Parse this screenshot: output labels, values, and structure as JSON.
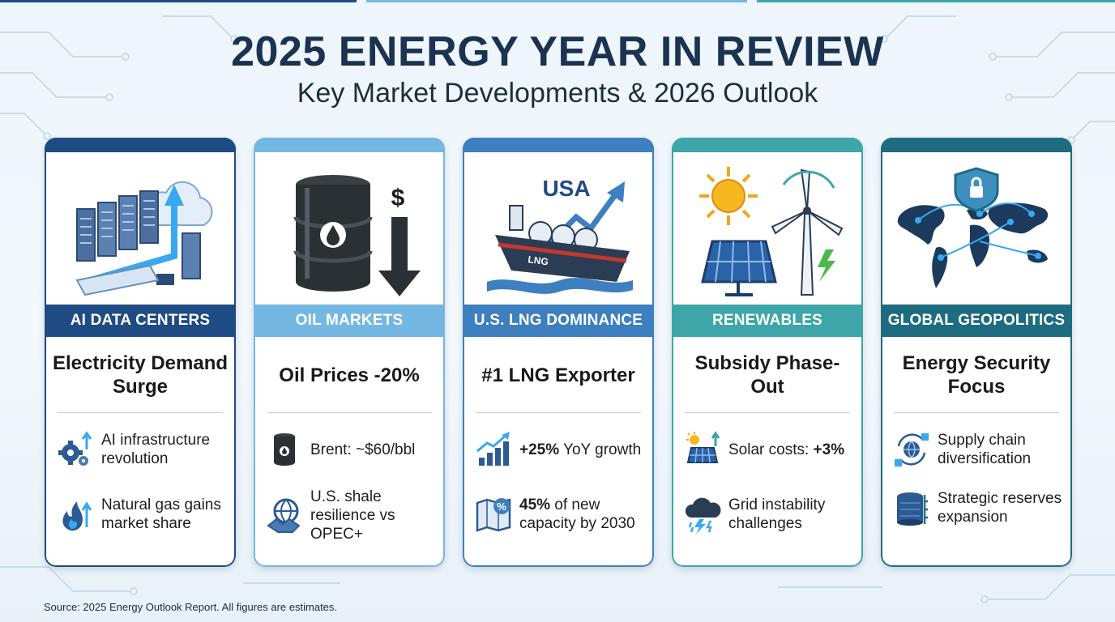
{
  "header": {
    "title": "2025 ENERGY YEAR IN REVIEW",
    "subtitle": "Key Market Developments & 2026 Outlook"
  },
  "colors": {
    "navy": "#1f4b84",
    "light_blue": "#74b7e2",
    "mid_blue": "#3d7fbf",
    "teal": "#3ea6a8",
    "dark_teal": "#1e6c80"
  },
  "cards": [
    {
      "banner": "AI DATA CENTERS",
      "headline": "Electricity Demand Surge",
      "illustration": "server-cloud-icon",
      "bullets": [
        {
          "icon": "gear-arrow-icon",
          "text": "AI infrastructure revolution"
        },
        {
          "icon": "flame-arrow-icon",
          "text": "Natural gas gains market share"
        }
      ]
    },
    {
      "banner": "OIL MARKETS",
      "headline": "Oil Prices -20%",
      "illustration": "oil-barrel-icon",
      "illustration_label": "$",
      "bullets": [
        {
          "icon": "barrel-icon",
          "text": "Brent: ~$60/bbl"
        },
        {
          "icon": "globe-handshake-icon",
          "text": "U.S. shale resilience vs OPEC+"
        }
      ]
    },
    {
      "banner": "U.S. LNG DOMINANCE",
      "headline": "#1 LNG Exporter",
      "illustration": "lng-tanker-icon",
      "illustration_label": "USA",
      "ship_label": "LNG",
      "bullets": [
        {
          "icon": "growth-chart-icon",
          "bold": "+25%",
          "text": " YoY growth"
        },
        {
          "icon": "percent-map-icon",
          "bold": "45%",
          "text": " of new capacity by 2030"
        }
      ]
    },
    {
      "banner": "RENEWABLES",
      "headline": "Subsidy Phase-Out",
      "illustration": "solar-wind-icon",
      "bullets": [
        {
          "icon": "solar-panel-icon",
          "text": "Solar costs: ",
          "bold": "+3%"
        },
        {
          "icon": "storm-cloud-icon",
          "text": "Grid instability challenges"
        }
      ]
    },
    {
      "banner": "GLOBAL GEOPOLITICS",
      "headline": "Energy Security Focus",
      "illustration": "world-shield-icon",
      "bullets": [
        {
          "icon": "globe-cycle-icon",
          "text": "Supply chain diversification"
        },
        {
          "icon": "storage-tank-icon",
          "text": "Strategic reserves expansion"
        }
      ]
    }
  ],
  "footer": {
    "source": "Source: 2025 Energy Outlook Report. All figures are estimates."
  }
}
